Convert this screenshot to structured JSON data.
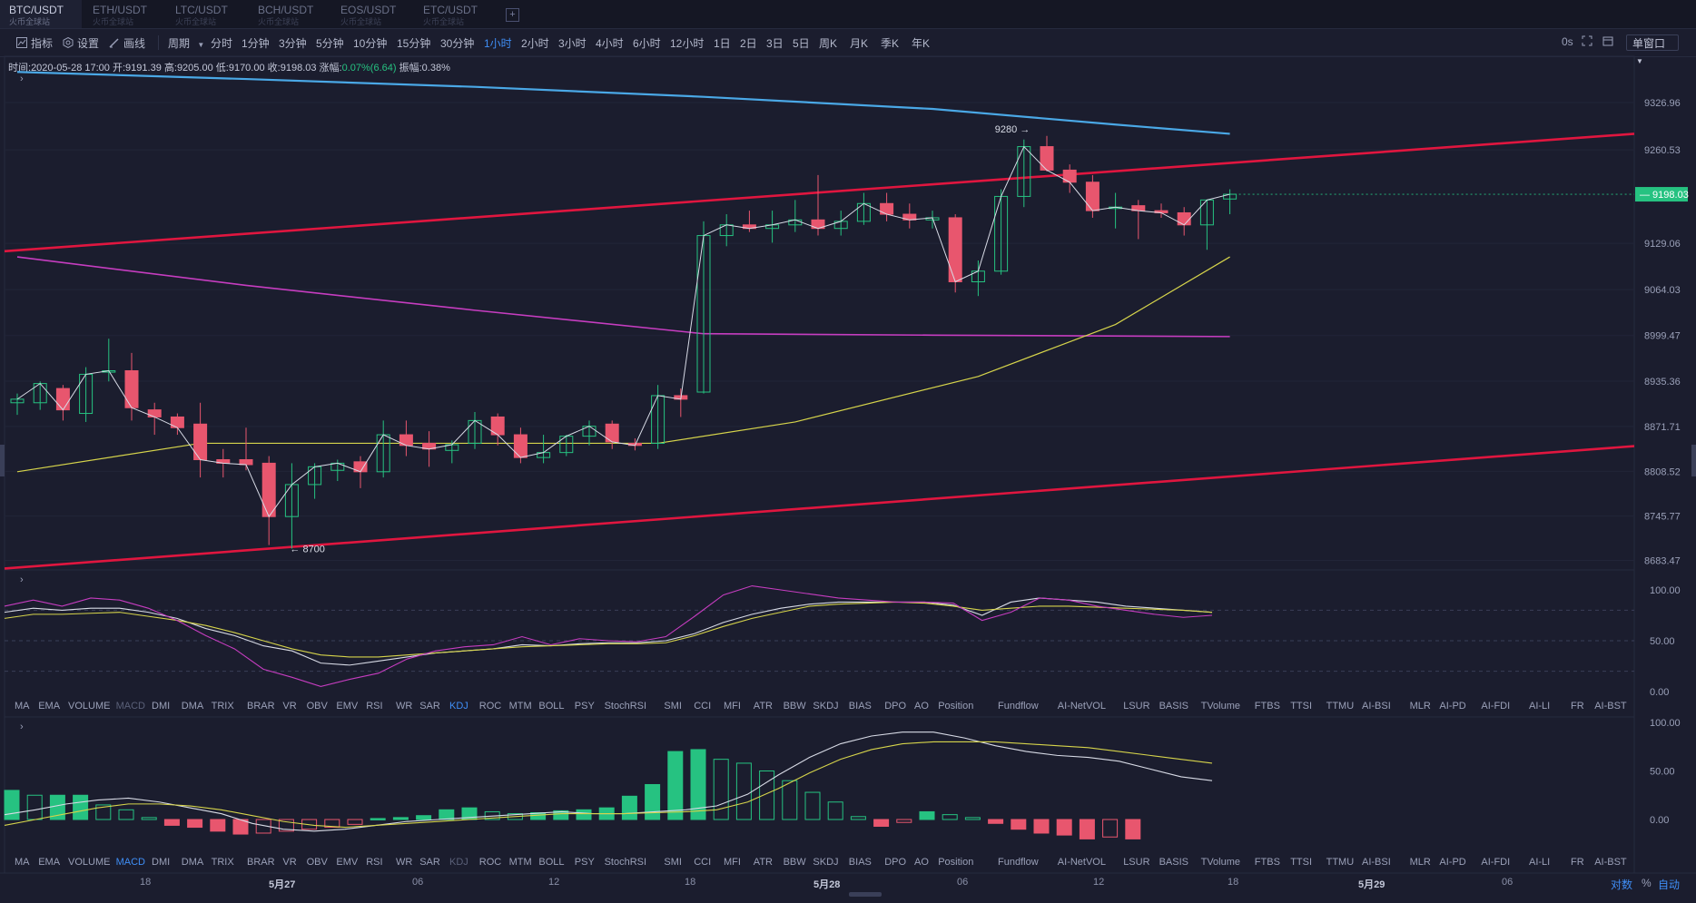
{
  "tabs": [
    {
      "pair": "BTC/USDT",
      "site": "火币全球站",
      "active": true
    },
    {
      "pair": "ETH/USDT",
      "site": "火币全球站",
      "active": false
    },
    {
      "pair": "LTC/USDT",
      "site": "火币全球站",
      "active": false
    },
    {
      "pair": "BCH/USDT",
      "site": "火币全球站",
      "active": false
    },
    {
      "pair": "EOS/USDT",
      "site": "火币全球站",
      "active": false
    },
    {
      "pair": "ETC/USDT",
      "site": "火币全球站",
      "active": false
    }
  ],
  "tab_add": "+",
  "toolbar": {
    "indicator": "指标",
    "settings": "设置",
    "draw": "画线",
    "period": "周期",
    "periods": [
      "分时",
      "1分钟",
      "3分钟",
      "5分钟",
      "10分钟",
      "15分钟",
      "30分钟",
      "1小时",
      "2小时",
      "3小时",
      "4小时",
      "6小时",
      "12小时",
      "1日",
      "2日",
      "3日",
      "5日",
      "周K",
      "月K",
      "季K",
      "年K"
    ],
    "active_period": "1小时",
    "countdown": "0s",
    "window_mode": "单窗口"
  },
  "info": {
    "time_label": "时间:",
    "time": "2020-05-28 17:00",
    "open_label": "开:",
    "open": "9191.39",
    "high_label": "高:",
    "high": "9205.00",
    "low_label": "低:",
    "low": "9170.00",
    "close_label": "收:",
    "close": "9198.03",
    "change_label": "涨幅:",
    "change": "0.07%(6.64)",
    "amp_label": "振幅:",
    "amp": "0.38%"
  },
  "indicators": [
    "MA",
    "EMA",
    "VOLUME",
    "MACD",
    "DMI",
    "DMA",
    "TRIX",
    "BRAR",
    "VR",
    "OBV",
    "EMV",
    "RSI",
    "WR",
    "SAR",
    "KDJ",
    "ROC",
    "MTM",
    "BOLL",
    "PSY",
    "StochRSI",
    "SMI",
    "CCI",
    "MFI",
    "ATR",
    "BBW",
    "SKDJ",
    "BIAS",
    "DPO",
    "AO",
    "Position",
    "Fundflow",
    "AI-NetVOL",
    "LSUR",
    "BASIS",
    "TVolume",
    "FTBS",
    "TTSI",
    "TTMU",
    "AI-BSI",
    "MLR",
    "AI-PD",
    "AI-FDI",
    "AI-LI",
    "FR",
    "AI-BST"
  ],
  "indicator_rows": [
    {
      "highlight": "KDJ",
      "dim": "MACD"
    },
    {
      "highlight": "MACD",
      "dim": "KDJ"
    }
  ],
  "x_labels": [
    {
      "t": "18",
      "bold": false
    },
    {
      "t": "5月27",
      "bold": true
    },
    {
      "t": "06",
      "bold": false
    },
    {
      "t": "12",
      "bold": false
    },
    {
      "t": "18",
      "bold": false
    },
    {
      "t": "5月28",
      "bold": true
    },
    {
      "t": "06",
      "bold": false
    },
    {
      "t": "12",
      "bold": false
    },
    {
      "t": "18",
      "bold": false
    },
    {
      "t": "5月29",
      "bold": true
    },
    {
      "t": "06",
      "bold": false
    }
  ],
  "bottom_controls": {
    "log": "对数",
    "percent": "%",
    "auto": "自动"
  },
  "colors": {
    "up": "#26c281",
    "down": "#e8566e",
    "ma_blue": "#4aa8e6",
    "ma_purple": "#c63dc0",
    "ma_yellow": "#d6d44b",
    "ma_white": "#d8dbe6",
    "trend": "#e0163f",
    "bg": "#1b1d2e",
    "grid": "#262a3e"
  },
  "chart_data": [
    {
      "type": "candlestick",
      "title": "BTC/USDT 1小时",
      "y_ticks": [
        9326.96,
        9260.53,
        9129.06,
        9064.03,
        8999.47,
        8935.36,
        8871.71,
        8808.52,
        8745.77,
        8683.47
      ],
      "ylim": [
        8670,
        9392
      ],
      "last_price": "9198.03",
      "annotations": [
        {
          "text": "9280 →",
          "x_index": 44,
          "value": 9280
        },
        {
          "text": "← 8700",
          "x_index": 12,
          "value": 8700
        }
      ],
      "candles": [
        {
          "o": 8905,
          "h": 8918,
          "l": 8888,
          "c": 8910
        },
        {
          "o": 8905,
          "h": 8935,
          "l": 8895,
          "c": 8932
        },
        {
          "o": 8925,
          "h": 8930,
          "l": 8880,
          "c": 8895
        },
        {
          "o": 8890,
          "h": 8955,
          "l": 8878,
          "c": 8945
        },
        {
          "o": 8948,
          "h": 8995,
          "l": 8935,
          "c": 8950
        },
        {
          "o": 8950,
          "h": 8975,
          "l": 8880,
          "c": 8898
        },
        {
          "o": 8895,
          "h": 8905,
          "l": 8860,
          "c": 8885
        },
        {
          "o": 8885,
          "h": 8890,
          "l": 8860,
          "c": 8870
        },
        {
          "o": 8875,
          "h": 8905,
          "l": 8800,
          "c": 8825
        },
        {
          "o": 8825,
          "h": 8840,
          "l": 8800,
          "c": 8820
        },
        {
          "o": 8825,
          "h": 8870,
          "l": 8810,
          "c": 8818
        },
        {
          "o": 8820,
          "h": 8830,
          "l": 8705,
          "c": 8745
        },
        {
          "o": 8745,
          "h": 8820,
          "l": 8700,
          "c": 8790
        },
        {
          "o": 8790,
          "h": 8820,
          "l": 8770,
          "c": 8815
        },
        {
          "o": 8810,
          "h": 8825,
          "l": 8795,
          "c": 8820
        },
        {
          "o": 8822,
          "h": 8830,
          "l": 8785,
          "c": 8808
        },
        {
          "o": 8808,
          "h": 8880,
          "l": 8800,
          "c": 8860
        },
        {
          "o": 8860,
          "h": 8880,
          "l": 8830,
          "c": 8845
        },
        {
          "o": 8848,
          "h": 8865,
          "l": 8815,
          "c": 8840
        },
        {
          "o": 8838,
          "h": 8852,
          "l": 8820,
          "c": 8846
        },
        {
          "o": 8848,
          "h": 8892,
          "l": 8840,
          "c": 8880
        },
        {
          "o": 8885,
          "h": 8890,
          "l": 8845,
          "c": 8860
        },
        {
          "o": 8860,
          "h": 8870,
          "l": 8820,
          "c": 8828
        },
        {
          "o": 8828,
          "h": 8860,
          "l": 8820,
          "c": 8835
        },
        {
          "o": 8835,
          "h": 8860,
          "l": 8830,
          "c": 8858
        },
        {
          "o": 8858,
          "h": 8880,
          "l": 8845,
          "c": 8872
        },
        {
          "o": 8875,
          "h": 8880,
          "l": 8840,
          "c": 8850
        },
        {
          "o": 8848,
          "h": 8855,
          "l": 8838,
          "c": 8845
        },
        {
          "o": 8848,
          "h": 8930,
          "l": 8840,
          "c": 8915
        },
        {
          "o": 8915,
          "h": 8925,
          "l": 8885,
          "c": 8910
        },
        {
          "o": 8920,
          "h": 9160,
          "l": 8918,
          "c": 9140
        },
        {
          "o": 9140,
          "h": 9170,
          "l": 9125,
          "c": 9155
        },
        {
          "o": 9155,
          "h": 9175,
          "l": 9145,
          "c": 9150
        },
        {
          "o": 9150,
          "h": 9175,
          "l": 9130,
          "c": 9155
        },
        {
          "o": 9155,
          "h": 9190,
          "l": 9145,
          "c": 9162
        },
        {
          "o": 9162,
          "h": 9225,
          "l": 9140,
          "c": 9150
        },
        {
          "o": 9150,
          "h": 9175,
          "l": 9140,
          "c": 9160
        },
        {
          "o": 9160,
          "h": 9200,
          "l": 9155,
          "c": 9185
        },
        {
          "o": 9185,
          "h": 9200,
          "l": 9160,
          "c": 9170
        },
        {
          "o": 9170,
          "h": 9185,
          "l": 9150,
          "c": 9162
        },
        {
          "o": 9162,
          "h": 9175,
          "l": 9150,
          "c": 9165
        },
        {
          "o": 9165,
          "h": 9170,
          "l": 9060,
          "c": 9075
        },
        {
          "o": 9075,
          "h": 9105,
          "l": 9055,
          "c": 9090
        },
        {
          "o": 9090,
          "h": 9205,
          "l": 9085,
          "c": 9195
        },
        {
          "o": 9195,
          "h": 9275,
          "l": 9180,
          "c": 9265
        },
        {
          "o": 9265,
          "h": 9280,
          "l": 9230,
          "c": 9232
        },
        {
          "o": 9232,
          "h": 9240,
          "l": 9200,
          "c": 9215
        },
        {
          "o": 9215,
          "h": 9225,
          "l": 9165,
          "c": 9175
        },
        {
          "o": 9178,
          "h": 9200,
          "l": 9150,
          "c": 9180
        },
        {
          "o": 9182,
          "h": 9190,
          "l": 9135,
          "c": 9175
        },
        {
          "o": 9175,
          "h": 9185,
          "l": 9165,
          "c": 9172
        },
        {
          "o": 9172,
          "h": 9180,
          "l": 9140,
          "c": 9155
        },
        {
          "o": 9155,
          "h": 9190,
          "l": 9120,
          "c": 9190
        },
        {
          "o": 9191.39,
          "h": 9205,
          "l": 9170,
          "c": 9198.03
        }
      ],
      "ma_blue": [
        [
          0,
          9370
        ],
        [
          10,
          9360
        ],
        [
          20,
          9349
        ],
        [
          30,
          9335
        ],
        [
          40,
          9318
        ],
        [
          48,
          9296
        ],
        [
          53,
          9283
        ]
      ],
      "ma_purple": [
        [
          0,
          9110
        ],
        [
          10,
          9070
        ],
        [
          20,
          9035
        ],
        [
          30,
          9002
        ],
        [
          40,
          9000
        ],
        [
          53,
          8998
        ]
      ],
      "ma_yellow": [
        [
          0,
          8808
        ],
        [
          8,
          8848
        ],
        [
          20,
          8848
        ],
        [
          28,
          8848
        ],
        [
          34,
          8878
        ],
        [
          42,
          8942
        ],
        [
          48,
          9015
        ],
        [
          53,
          9110
        ]
      ],
      "trendlines": [
        {
          "from": [
            0,
            9118
          ],
          "to": [
            72,
            9283
          ]
        },
        {
          "from": [
            0,
            8672
          ],
          "to": [
            72,
            8844
          ]
        }
      ]
    },
    {
      "type": "line",
      "title": "KDJ",
      "y_ticks": [
        100,
        50,
        0
      ],
      "series": [
        {
          "name": "K",
          "color": "#d8dbe6",
          "values": [
            78,
            82,
            80,
            82,
            82,
            78,
            72,
            62,
            55,
            45,
            40,
            28,
            26,
            30,
            34,
            38,
            40,
            42,
            46,
            45,
            47,
            48,
            48,
            50,
            57,
            68,
            76,
            82,
            86,
            88,
            88,
            88,
            88,
            85,
            75,
            88,
            92,
            90,
            88,
            84,
            82,
            80,
            78
          ]
        },
        {
          "name": "D",
          "color": "#d6d44b",
          "values": [
            72,
            76,
            76,
            77,
            78,
            74,
            70,
            65,
            58,
            50,
            42,
            36,
            34,
            34,
            36,
            38,
            40,
            42,
            44,
            45,
            46,
            47,
            47,
            48,
            55,
            64,
            72,
            78,
            84,
            86,
            87,
            88,
            87,
            84,
            80,
            82,
            84,
            84,
            83,
            82,
            81,
            80,
            78
          ]
        },
        {
          "name": "J",
          "color": "#c63dc0",
          "values": [
            84,
            90,
            84,
            92,
            90,
            82,
            70,
            55,
            42,
            22,
            14,
            5,
            12,
            18,
            32,
            40,
            44,
            46,
            54,
            46,
            52,
            50,
            49,
            54,
            74,
            95,
            104,
            100,
            96,
            92,
            90,
            88,
            88,
            87,
            70,
            78,
            92,
            90,
            84,
            80,
            76,
            73,
            75
          ]
        }
      ]
    },
    {
      "type": "bar",
      "title": "MACD",
      "y_ticks": [
        100,
        50,
        0
      ],
      "histogram": [
        30,
        25,
        25,
        25,
        15,
        10,
        2,
        -6,
        -8,
        -12,
        -15,
        -14,
        -12,
        -10,
        -8,
        -5,
        1,
        2,
        4,
        10,
        12,
        8,
        6,
        7,
        9,
        10,
        12,
        24,
        36,
        70,
        72,
        62,
        58,
        50,
        40,
        28,
        18,
        3,
        -7,
        -3,
        8,
        5,
        2,
        -4,
        -10,
        -14,
        -16,
        -20,
        -18,
        -20
      ],
      "series": [
        {
          "name": "DIF",
          "color": "#d8dbe6",
          "values": [
            5,
            10,
            16,
            20,
            22,
            18,
            12,
            6,
            -4,
            -10,
            -12,
            -10,
            -6,
            -2,
            0,
            2,
            4,
            6,
            8,
            6,
            6,
            8,
            10,
            14,
            26,
            46,
            64,
            78,
            86,
            90,
            90,
            84,
            76,
            70,
            66,
            64,
            60,
            52,
            44,
            40
          ]
        },
        {
          "name": "DEA",
          "color": "#d6d44b",
          "values": [
            -6,
            0,
            6,
            12,
            16,
            16,
            14,
            10,
            4,
            -2,
            -6,
            -8,
            -6,
            -4,
            -2,
            0,
            2,
            4,
            6,
            6,
            6,
            7,
            8,
            10,
            18,
            32,
            48,
            62,
            72,
            78,
            80,
            80,
            80,
            78,
            76,
            74,
            70,
            66,
            62,
            58
          ]
        }
      ]
    }
  ]
}
